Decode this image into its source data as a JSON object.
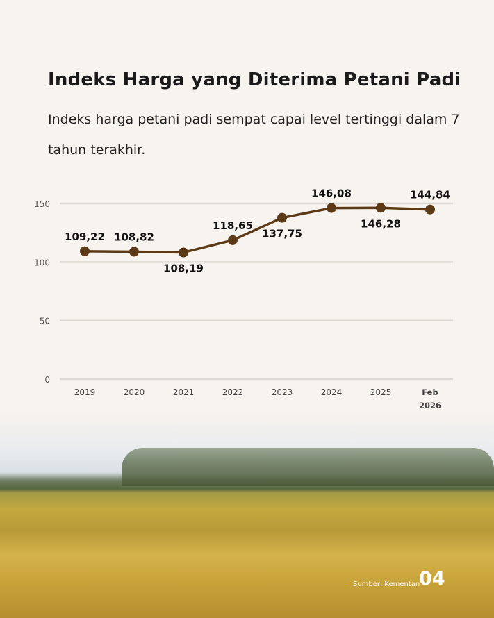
{
  "title": "Indeks Harga yang Diterima Petani Padi",
  "subtitle": "Indeks harga petani padi sempat capai level tertinggi dalam 7 tahun terakhir.",
  "source": "Sumber: Kementan",
  "page_number": "04",
  "colors": {
    "line": "#5c3a17",
    "grid": "#dcd8d2",
    "background": "#f7f3ee"
  },
  "chart_data": {
    "type": "line",
    "title": "Indeks Harga yang Diterima Petani Padi",
    "categories": [
      [
        "2019"
      ],
      [
        "2020"
      ],
      [
        "2021"
      ],
      [
        "2022"
      ],
      [
        "2023"
      ],
      [
        "2024"
      ],
      [
        "2025"
      ],
      [
        "Feb",
        "2026"
      ]
    ],
    "values": [
      109.22,
      108.82,
      108.19,
      118.65,
      137.75,
      146.08,
      146.28,
      144.84
    ],
    "labels": [
      "109,22",
      "108,82",
      "108,19",
      "118,65",
      "137,75",
      "146,08",
      "146,28",
      "144,84"
    ],
    "label_side": [
      "above",
      "above",
      "below",
      "above",
      "below",
      "above",
      "below",
      "above"
    ],
    "yticks": [
      0,
      50,
      100,
      150
    ],
    "ylim": [
      0,
      150
    ],
    "grid": true
  }
}
